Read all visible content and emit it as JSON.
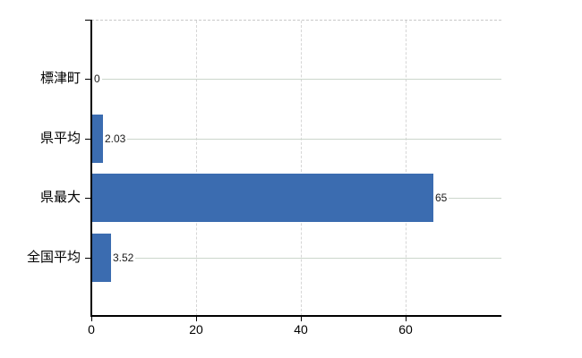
{
  "chart_data": {
    "type": "bar",
    "orientation": "horizontal",
    "title": "",
    "xlabel": "",
    "ylabel": "",
    "categories": [
      "標津町",
      "県平均",
      "県最大",
      "全国平均"
    ],
    "values": [
      0,
      2.03,
      65,
      3.52
    ],
    "value_labels": [
      "0",
      "2.03",
      "65",
      "3.52"
    ],
    "x_ticks": [
      0,
      20,
      40,
      60
    ],
    "x_tick_labels": [
      "0",
      "20",
      "40",
      "60"
    ],
    "xlim": [
      0,
      78.2
    ],
    "grid": true,
    "legend": "none",
    "colors": {
      "bar": "#3b6cb0",
      "axis": "#000000",
      "h_gridline": "#ccd6cc",
      "v_gridline": "#d6d6d6",
      "top_border_dashed": "#c9c9c9",
      "label_text": "#000000",
      "value_text": "#1a1a1a",
      "background": "#ffffff"
    }
  }
}
